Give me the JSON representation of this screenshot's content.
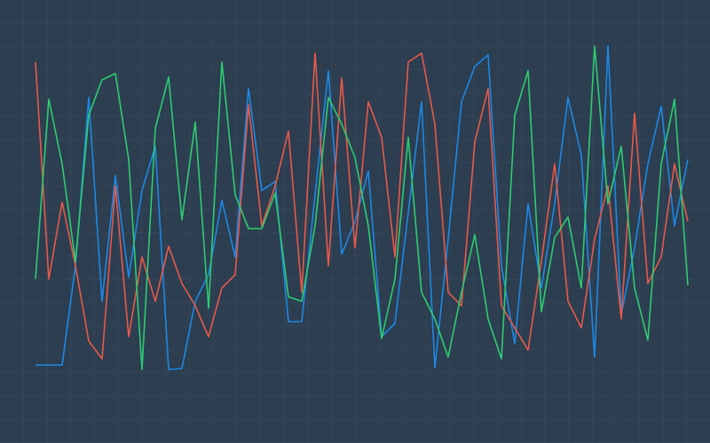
{
  "chart_data": {
    "type": "line",
    "categories": [
      null,
      null,
      null,
      null,
      null,
      null,
      null,
      null,
      null,
      null,
      null,
      null,
      null,
      null,
      null,
      null,
      null,
      null,
      null,
      null,
      null,
      null,
      null,
      null,
      null,
      null,
      null,
      null,
      null,
      null,
      null,
      null,
      null,
      null,
      null,
      null,
      null,
      null,
      null,
      null,
      null,
      null,
      null,
      null,
      null,
      null,
      null,
      null,
      null,
      null
    ],
    "ylim": [
      0,
      100
    ],
    "series": [
      {
        "color": "#1e88e5",
        "values": [
          17.6,
          17.6,
          17.6,
          40,
          78,
          32,
          60.4,
          37.4,
          57,
          67,
          16.6,
          16.8,
          32,
          38,
          54.8,
          42,
          80,
          57,
          59,
          27.4,
          27.4,
          56,
          84,
          42.6,
          50,
          61.4,
          24,
          27,
          52,
          77,
          17,
          46,
          77,
          85,
          87.6,
          40,
          22.4,
          54,
          35,
          54,
          78,
          65,
          19.4,
          89.6,
          29,
          44,
          63,
          76,
          49,
          64
        ]
      },
      {
        "color": "#e8594a",
        "values": [
          86,
          37,
          54.4,
          40,
          23,
          19,
          58,
          24,
          42,
          32,
          44.4,
          36,
          31,
          24,
          35,
          38,
          76.4,
          49,
          58,
          70.4,
          34,
          88,
          40,
          82.4,
          44,
          77,
          69,
          42,
          86,
          88,
          72,
          34,
          31,
          68,
          80,
          31,
          26,
          21,
          41,
          63,
          32,
          26,
          46,
          58,
          28,
          74.4,
          36,
          42,
          63,
          50
        ]
      },
      {
        "color": "#2ecc71",
        "values": [
          37,
          77.6,
          63,
          41,
          74,
          82,
          83.4,
          64,
          16.6,
          71,
          82.6,
          50.4,
          72.4,
          30.4,
          86,
          56,
          48.4,
          48.4,
          56.4,
          33,
          32,
          49,
          78,
          72,
          64.4,
          49,
          23.6,
          37,
          69,
          34,
          28,
          19.4,
          34,
          47,
          28,
          19,
          74,
          84,
          29.6,
          46.4,
          51,
          35,
          89.6,
          54,
          67,
          35,
          23.2,
          63,
          77.6,
          35.6
        ]
      }
    ]
  }
}
